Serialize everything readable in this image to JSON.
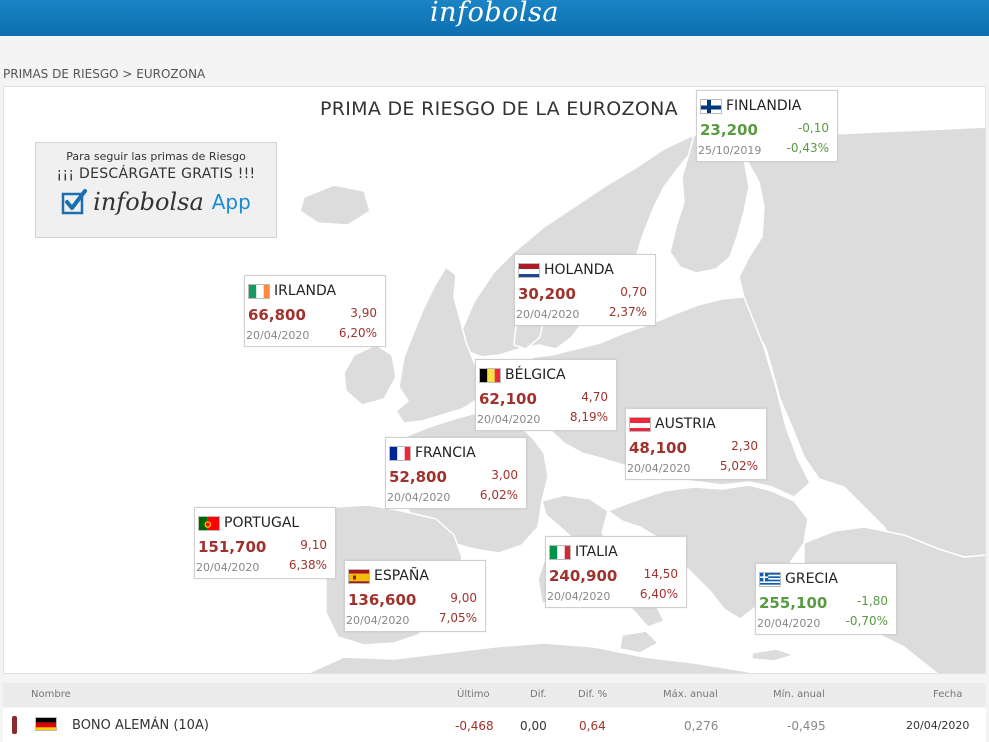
{
  "header": {
    "logo": "infobolsa"
  },
  "breadcrumb": "PRIMAS DE RIESGO > EUROZONA",
  "map_title": "PRIMA DE RIESGO DE LA EUROZONA",
  "promo": {
    "line1": "Para seguir las primas de Riesgo",
    "line2": "¡¡¡ DESCÁRGATE GRATIS !!!",
    "logo_text": "infobolsa",
    "app_text": "App"
  },
  "countries": [
    {
      "name": "FINLANDIA",
      "flag": "finland-flag",
      "value": "23,200",
      "dif": "-0,10",
      "date": "25/10/2019",
      "pct": "-0,43%",
      "trend": "down"
    },
    {
      "name": "HOLANDA",
      "flag": "netherlands-flag",
      "value": "30,200",
      "dif": "0,70",
      "date": "20/04/2020",
      "pct": "2,37%",
      "trend": "up"
    },
    {
      "name": "IRLANDA",
      "flag": "ireland-flag",
      "value": "66,800",
      "dif": "3,90",
      "date": "20/04/2020",
      "pct": "6,20%",
      "trend": "up"
    },
    {
      "name": "BÉLGICA",
      "flag": "belgium-flag",
      "value": "62,100",
      "dif": "4,70",
      "date": "20/04/2020",
      "pct": "8,19%",
      "trend": "up"
    },
    {
      "name": "AUSTRIA",
      "flag": "austria-flag",
      "value": "48,100",
      "dif": "2,30",
      "date": "20/04/2020",
      "pct": "5,02%",
      "trend": "up"
    },
    {
      "name": "FRANCIA",
      "flag": "france-flag",
      "value": "52,800",
      "dif": "3,00",
      "date": "20/04/2020",
      "pct": "6,02%",
      "trend": "up"
    },
    {
      "name": "PORTUGAL",
      "flag": "portugal-flag",
      "value": "151,700",
      "dif": "9,10",
      "date": "20/04/2020",
      "pct": "6,38%",
      "trend": "up"
    },
    {
      "name": "ESPAÑA",
      "flag": "spain-flag",
      "value": "136,600",
      "dif": "9,00",
      "date": "20/04/2020",
      "pct": "7,05%",
      "trend": "up"
    },
    {
      "name": "ITALIA",
      "flag": "italy-flag",
      "value": "240,900",
      "dif": "14,50",
      "date": "20/04/2020",
      "pct": "6,40%",
      "trend": "up"
    },
    {
      "name": "GRECIA",
      "flag": "greece-flag",
      "value": "255,100",
      "dif": "-1,80",
      "date": "20/04/2020",
      "pct": "-0,70%",
      "trend": "down"
    }
  ],
  "table": {
    "headers": {
      "nombre": "Nombre",
      "ultimo": "Último",
      "dif": "Dif.",
      "dif_pct": "Dif. %",
      "max": "Máx. anual",
      "min": "Mín. anual",
      "fecha": "Fecha"
    },
    "rows": [
      {
        "name": "BONO ALEMÁN (10A)",
        "ultimo": "-0,468",
        "dif": "0,00",
        "dif_pct": "0,64",
        "max": "0,276",
        "min": "-0,495",
        "fecha": "20/04/2020"
      }
    ]
  },
  "colors": {
    "header_blue": "#1379bb",
    "up_red": "#a0322e",
    "down_green": "#5a9a42",
    "land": "#dcdcdc",
    "sea": "#ffffff"
  }
}
